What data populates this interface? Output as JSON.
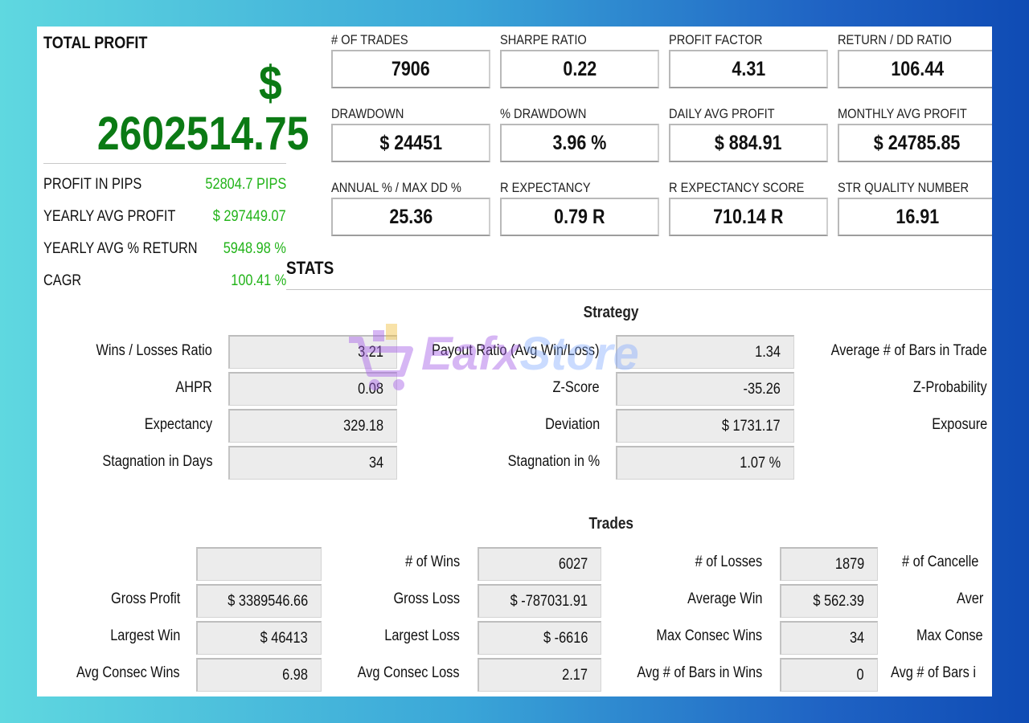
{
  "total_profit": {
    "title": "TOTAL PROFIT",
    "currency": "$",
    "value": "2602514.75"
  },
  "summary": [
    {
      "label": "PROFIT IN PIPS",
      "value": "52804.7 PIPS"
    },
    {
      "label": "YEARLY AVG PROFIT",
      "value": "$ 297449.07"
    },
    {
      "label": "YEARLY AVG % RETURN",
      "value": "5948.98 %"
    },
    {
      "label": "CAGR",
      "value": "100.41 %"
    }
  ],
  "metrics": [
    {
      "label": "# OF TRADES",
      "value": "7906"
    },
    {
      "label": "SHARPE RATIO",
      "value": "0.22"
    },
    {
      "label": "PROFIT FACTOR",
      "value": "4.31"
    },
    {
      "label": "RETURN / DD RATIO",
      "value": "106.44"
    },
    {
      "label": "DRAWDOWN",
      "value": "$ 24451"
    },
    {
      "label": "% DRAWDOWN",
      "value": "3.96 %"
    },
    {
      "label": "DAILY AVG PROFIT",
      "value": "$ 884.91"
    },
    {
      "label": "MONTHLY AVG PROFIT",
      "value": "$ 24785.85"
    },
    {
      "label": "ANNUAL % / MAX DD %",
      "value": "25.36"
    },
    {
      "label": "R EXPECTANCY",
      "value": "0.79 R"
    },
    {
      "label": "R EXPECTANCY SCORE",
      "value": "710.14 R"
    },
    {
      "label": "STR QUALITY NUMBER",
      "value": "16.91"
    }
  ],
  "stats_title": "STATS",
  "strategy": {
    "title": "Strategy",
    "rows": [
      {
        "l1": "Wins / Losses Ratio",
        "v1": "3.21",
        "l2": "Payout Ratio (Avg Win/Loss)",
        "v2": "1.34",
        "l3": "Average # of Bars in Trade"
      },
      {
        "l1": "AHPR",
        "v1": "0.08",
        "l2": "Z-Score",
        "v2": "-35.26",
        "l3": "Z-Probability"
      },
      {
        "l1": "Expectancy",
        "v1": "329.18",
        "l2": "Deviation",
        "v2": "$ 1731.17",
        "l3": "Exposure"
      },
      {
        "l1": "Stagnation in Days",
        "v1": "34",
        "l2": "Stagnation in %",
        "v2": "1.07 %",
        "l3": ""
      }
    ]
  },
  "trades": {
    "title": "Trades",
    "rows": [
      {
        "l1": "",
        "v1": "",
        "l2": "# of Wins",
        "v2": "6027",
        "l3": "# of Losses",
        "v3": "1879",
        "l4": "# of Cancelle"
      },
      {
        "l1": "Gross Profit",
        "v1": "$ 3389546.66",
        "l2": "Gross Loss",
        "v2": "$ -787031.91",
        "l3": "Average Win",
        "v3": "$ 562.39",
        "l4": "Aver"
      },
      {
        "l1": "Largest Win",
        "v1": "$ 46413",
        "l2": "Largest Loss",
        "v2": "$ -6616",
        "l3": "Max Consec Wins",
        "v3": "34",
        "l4": "Max Conse"
      },
      {
        "l1": "Avg Consec Wins",
        "v1": "6.98",
        "l2": "Avg Consec Loss",
        "v2": "2.17",
        "l3": "Avg # of Bars in Wins",
        "v3": "0",
        "l4": "Avg # of Bars i"
      }
    ]
  },
  "watermark": {
    "text_a": "Eafx",
    "text_b": "Store",
    "icon": "cart-icon"
  },
  "colors": {
    "profit_green": "#0b7a14",
    "summary_green": "#23b41a",
    "bg_start": "#5fd8e0",
    "bg_end": "#0f4bb4"
  }
}
